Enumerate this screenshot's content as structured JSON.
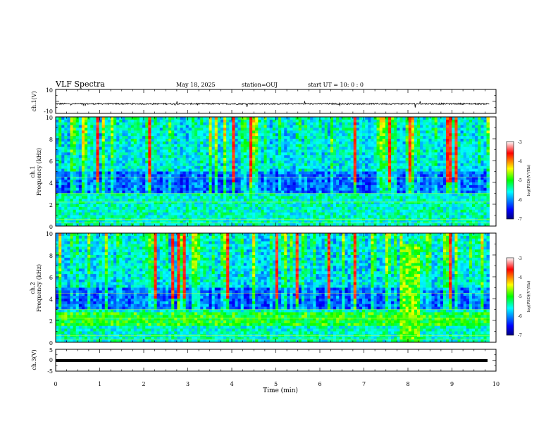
{
  "header": {
    "title": "VLF Spectra",
    "date": "May 18, 2025",
    "station": "station=OUJ",
    "start": "start  UT  =   10: 0   : 0"
  },
  "chart_data": [
    {
      "type": "line",
      "panel": "ch1-waveform",
      "ylabel": "ch.1(V)",
      "ylim": [
        -10,
        10
      ],
      "y_ticks": [
        "10",
        "-10"
      ],
      "description_values": {
        "baseline": -2,
        "noise_amplitude": 1.2
      }
    },
    {
      "type": "heatmap",
      "panel": "ch1-spectrogram",
      "ylabel": "Frequency (kHz)",
      "channel_label": "ch.1",
      "ylim": [
        0,
        10
      ],
      "y_ticks": [
        "0",
        "2",
        "4",
        "6",
        "8",
        "10"
      ],
      "colorbar": {
        "label": "log(PSD)(V²/Hz)",
        "ticks": [
          "-3",
          "-4",
          "-5",
          "-6",
          "-7"
        ],
        "range": [
          -7,
          -3
        ]
      }
    },
    {
      "type": "heatmap",
      "panel": "ch2-spectrogram",
      "ylabel": "Frequency (kHz)",
      "channel_label": "ch.2",
      "ylim": [
        0,
        10
      ],
      "y_ticks": [
        "0",
        "2",
        "4",
        "6",
        "8",
        "10"
      ],
      "colorbar": {
        "label": "log(PSD)(V²/Hz)",
        "ticks": [
          "-3",
          "-4",
          "-5",
          "-6",
          "-7"
        ],
        "range": [
          -7,
          -3
        ]
      }
    },
    {
      "type": "line",
      "panel": "ch3-waveform",
      "ylabel": "ch.3(V)",
      "ylim": [
        -5,
        5
      ],
      "y_ticks": [
        "5",
        "0",
        "-5"
      ],
      "description_values": {
        "baseline": -1.3
      }
    }
  ],
  "xaxis": {
    "label": "Time  (min)",
    "xlim": [
      0,
      10
    ],
    "ticks": [
      "0",
      "1",
      "2",
      "3",
      "4",
      "5",
      "6",
      "7",
      "8",
      "9",
      "10"
    ],
    "data_end": 9.85
  },
  "colors": {
    "low": "#000080",
    "mid": "#00ff00",
    "high": "#ff0000",
    "axis": "#000000"
  }
}
